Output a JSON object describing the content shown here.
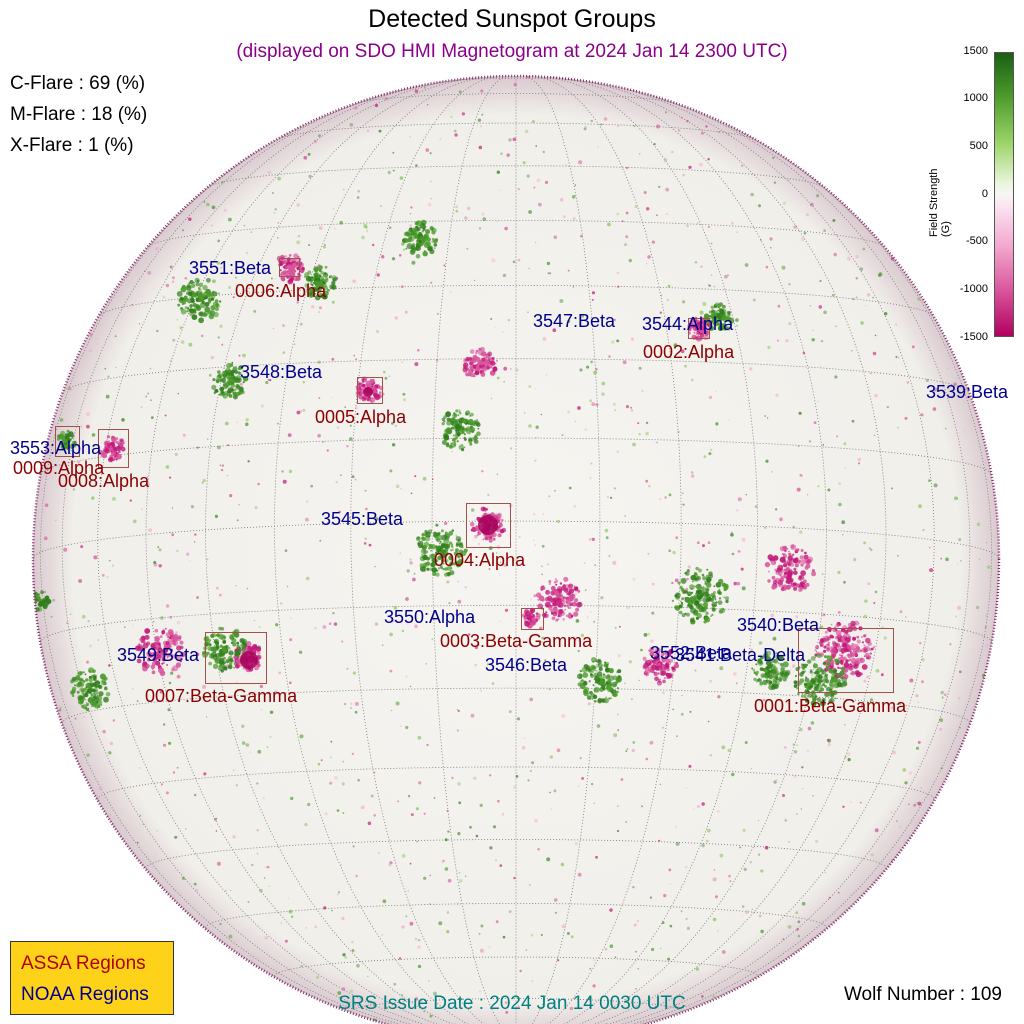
{
  "header": {
    "title": "Detected Sunspot Groups",
    "subtitle": "(displayed on SDO HMI Magnetogram at 2024 Jan 14 2300 UTC)"
  },
  "flare_probabilities": [
    {
      "label": "C-Flare : 69 (%)"
    },
    {
      "label": "M-Flare : 18 (%)"
    },
    {
      "label": "X-Flare :  1 (%)"
    }
  ],
  "colorbar": {
    "label": "Field Strength (G)",
    "ticks": [
      "1500",
      "1000",
      "500",
      "0",
      "-500",
      "-1000",
      "-1500"
    ],
    "colors": {
      "positive": "#1b5e14",
      "zero": "#f6f6f3",
      "negative": "#b2005f"
    }
  },
  "noaa_regions": [
    {
      "label": "3551:Beta"
    },
    {
      "label": "3547:Beta"
    },
    {
      "label": "3544:Alpha"
    },
    {
      "label": "3548:Beta"
    },
    {
      "label": "3539:Beta"
    },
    {
      "label": "3553:Alpha"
    },
    {
      "label": "3545:Beta"
    },
    {
      "label": "3550:Alpha"
    },
    {
      "label": "3540:Beta"
    },
    {
      "label": "3549:Beta"
    },
    {
      "label": "3552:Beta"
    },
    {
      "label": "3541:Beta-Delta"
    },
    {
      "label": "3546:Beta"
    }
  ],
  "assa_regions": [
    {
      "label": "0006:Alpha"
    },
    {
      "label": "0002:Alpha"
    },
    {
      "label": "0005:Alpha"
    },
    {
      "label": "0009:Alpha"
    },
    {
      "label": "0008:Alpha"
    },
    {
      "label": "0004:Alpha"
    },
    {
      "label": "0003:Beta-Gamma"
    },
    {
      "label": "0007:Beta-Gamma"
    },
    {
      "label": "0001:Beta-Gamma"
    }
  ],
  "legend": {
    "assa": "ASSA Regions",
    "noaa": "NOAA Regions",
    "colors": {
      "background": "#ffd21a",
      "assa": "#b30000",
      "noaa": "#00008b"
    }
  },
  "footer": {
    "srs_issue": "SRS Issue Date : 2024 Jan 14 0030 UTC",
    "wolf_number": "Wolf Number : 109"
  }
}
